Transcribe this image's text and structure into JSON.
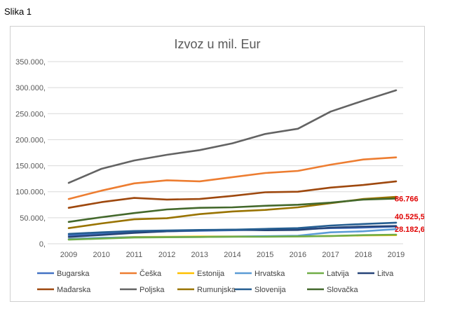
{
  "caption": "Slika 1",
  "chart_data": {
    "type": "line",
    "title": "Izvoz u mil. Eur",
    "xlabel": "",
    "ylabel": "",
    "ylim": [
      0,
      350000
    ],
    "y_ticks": [
      0,
      50000,
      100000,
      150000,
      200000,
      250000,
      300000,
      350000
    ],
    "y_tick_labels": [
      "0,",
      "50.000,",
      "100.000,",
      "150.000,",
      "200.000,",
      "250.000,",
      "300.000,",
      "350.000,"
    ],
    "x": [
      "2009",
      "2010",
      "2011",
      "2012",
      "2013",
      "2014",
      "2015",
      "2016",
      "2017",
      "2018",
      "2019"
    ],
    "grid": "horizontal",
    "legend": "bottom",
    "series": [
      {
        "name": "Bugarska",
        "color": "#4472c4",
        "values": [
          16000,
          20000,
          22000,
          24000,
          25000,
          26000,
          27000,
          28000,
          30000,
          31000,
          33000
        ]
      },
      {
        "name": "Češka",
        "color": "#ed7d31",
        "values": [
          86000,
          102000,
          116000,
          122000,
          120000,
          128000,
          136000,
          140000,
          152000,
          162000,
          166000
        ]
      },
      {
        "name": "Estonija",
        "color": "#ffc000",
        "values": [
          9000,
          11000,
          13000,
          13500,
          13800,
          14000,
          14000,
          14200,
          15000,
          16000,
          16500
        ]
      },
      {
        "name": "Hrvatska",
        "color": "#5b9bd5",
        "values": [
          9000,
          11500,
          12500,
          12800,
          13000,
          13700,
          14500,
          15500,
          22000,
          24000,
          28182.6
        ]
      },
      {
        "name": "Latvija",
        "color": "#70ad47",
        "values": [
          8000,
          10000,
          12000,
          12500,
          13000,
          13500,
          13500,
          14000,
          15000,
          16500,
          17500
        ]
      },
      {
        "name": "Litva",
        "color": "#264478",
        "values": [
          13000,
          17000,
          21000,
          24000,
          26000,
          27000,
          26000,
          26500,
          31000,
          33000,
          34000
        ]
      },
      {
        "name": "Mađarska",
        "color": "#9e480e",
        "values": [
          69000,
          80000,
          88000,
          85000,
          86000,
          92000,
          99000,
          100000,
          108000,
          113000,
          120000
        ]
      },
      {
        "name": "Poljska",
        "color": "#636363",
        "values": [
          117000,
          144000,
          160000,
          171000,
          180000,
          193000,
          211000,
          221000,
          254000,
          275000,
          295000
        ]
      },
      {
        "name": "Rumunjska",
        "color": "#997300",
        "values": [
          30000,
          39000,
          47000,
          49000,
          57000,
          62000,
          65000,
          70000,
          78000,
          86000,
          90000
        ]
      },
      {
        "name": "Slovenija",
        "color": "#255e91",
        "values": [
          19000,
          22000,
          24500,
          25500,
          26500,
          27000,
          28500,
          30000,
          35000,
          38000,
          40525.5
        ]
      },
      {
        "name": "Slovačka",
        "color": "#43682b",
        "values": [
          42000,
          51000,
          59000,
          66000,
          69000,
          70000,
          73000,
          75000,
          79000,
          85000,
          86766
        ]
      }
    ],
    "data_labels": [
      {
        "series": "Slovačka",
        "x": "2019",
        "text": "86.766"
      },
      {
        "series": "Slovenija",
        "x": "2019",
        "text": "40.525,5"
      },
      {
        "series": "Hrvatska",
        "x": "2019",
        "text": "28.182,6"
      }
    ]
  }
}
